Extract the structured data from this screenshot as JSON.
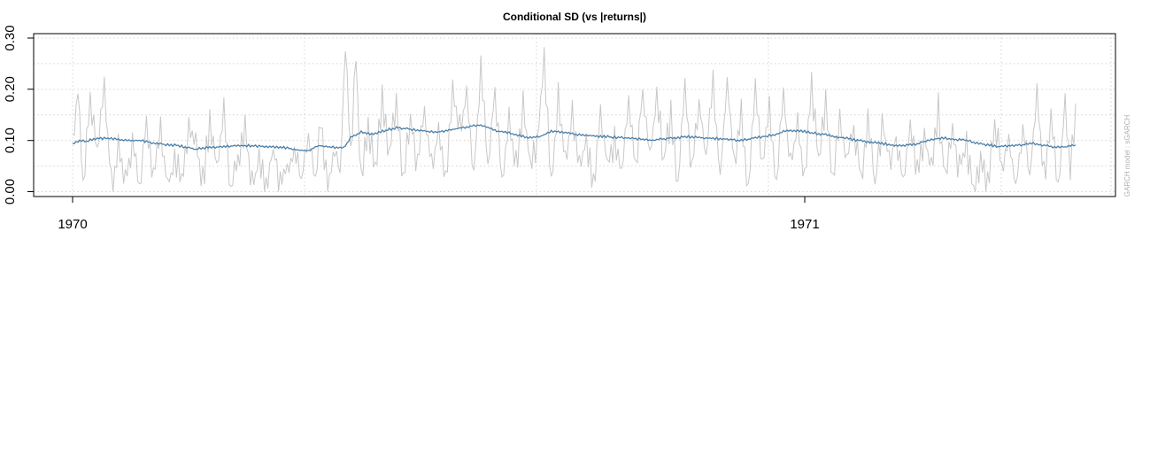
{
  "chart_data": {
    "type": "line",
    "title": "Conditional SD (vs |returns|)",
    "side_label": "GARCH model : sGARCH",
    "xlabel": "",
    "ylabel": "",
    "x_ticks": [
      "1970",
      "1971"
    ],
    "y_ticks": [
      "0.00",
      "0.10",
      "0.20",
      "0.30"
    ],
    "ylim": [
      -0.0085,
      0.31
    ],
    "grid": true,
    "n_points": 571,
    "colors": {
      "abs_returns": "#c8c8c8",
      "cond_sd": "#4a7faa",
      "grid": "#d4d4d4"
    },
    "series": [
      {
        "key": "abs_returns",
        "knots": [
          [
            0,
            0.095
          ],
          [
            3,
            0.2
          ],
          [
            6,
            0.02
          ],
          [
            10,
            0.185
          ],
          [
            14,
            0.07
          ],
          [
            18,
            0.205
          ],
          [
            22,
            0.01
          ],
          [
            26,
            0.08
          ],
          [
            30,
            0.02
          ],
          [
            34,
            0.1
          ],
          [
            38,
            0.01
          ],
          [
            42,
            0.145
          ],
          [
            46,
            0.03
          ],
          [
            50,
            0.12
          ],
          [
            54,
            0.01
          ],
          [
            58,
            0.06
          ],
          [
            62,
            0.02
          ],
          [
            66,
            0.13
          ],
          [
            70,
            0.09
          ],
          [
            74,
            0.02
          ],
          [
            78,
            0.135
          ],
          [
            82,
            0.045
          ],
          [
            86,
            0.16
          ],
          [
            90,
            0.01
          ],
          [
            94,
            0.07
          ],
          [
            98,
            0.13
          ],
          [
            102,
            0.01
          ],
          [
            106,
            0.06
          ],
          [
            110,
            0.02
          ],
          [
            114,
            0.08
          ],
          [
            118,
            0.01
          ],
          [
            122,
            0.045
          ],
          [
            126,
            0.08
          ],
          [
            130,
            0.02
          ],
          [
            134,
            0.1
          ],
          [
            138,
            0.03
          ],
          [
            141,
            0.15
          ],
          [
            145,
            0.0
          ],
          [
            149,
            0.1
          ],
          [
            152,
            0.03
          ],
          [
            155,
            0.295
          ],
          [
            158,
            0.07
          ],
          [
            161,
            0.27
          ],
          [
            164,
            0.02
          ],
          [
            168,
            0.13
          ],
          [
            172,
            0.04
          ],
          [
            176,
            0.19
          ],
          [
            180,
            0.07
          ],
          [
            184,
            0.17
          ],
          [
            188,
            0.02
          ],
          [
            192,
            0.15
          ],
          [
            196,
            0.05
          ],
          [
            200,
            0.16
          ],
          [
            204,
            0.04
          ],
          [
            208,
            0.13
          ],
          [
            212,
            0.03
          ],
          [
            216,
            0.19
          ],
          [
            220,
            0.12
          ],
          [
            224,
            0.19
          ],
          [
            228,
            0.03
          ],
          [
            232,
            0.25
          ],
          [
            236,
            0.04
          ],
          [
            240,
            0.2
          ],
          [
            244,
            0.01
          ],
          [
            248,
            0.14
          ],
          [
            252,
            0.05
          ],
          [
            256,
            0.17
          ],
          [
            260,
            0.06
          ],
          [
            264,
            0.1
          ],
          [
            268,
            0.25
          ],
          [
            272,
            0.02
          ],
          [
            276,
            0.18
          ],
          [
            280,
            0.06
          ],
          [
            284,
            0.15
          ],
          [
            288,
            0.05
          ],
          [
            292,
            0.1
          ],
          [
            296,
            0.02
          ],
          [
            300,
            0.14
          ],
          [
            304,
            0.06
          ],
          [
            308,
            0.1
          ],
          [
            312,
            0.03
          ],
          [
            316,
            0.18
          ],
          [
            320,
            0.04
          ],
          [
            324,
            0.2
          ],
          [
            328,
            0.06
          ],
          [
            332,
            0.19
          ],
          [
            336,
            0.06
          ],
          [
            340,
            0.15
          ],
          [
            344,
            0.02
          ],
          [
            348,
            0.2
          ],
          [
            352,
            0.04
          ],
          [
            356,
            0.18
          ],
          [
            360,
            0.07
          ],
          [
            364,
            0.22
          ],
          [
            368,
            0.03
          ],
          [
            372,
            0.22
          ],
          [
            376,
            0.06
          ],
          [
            380,
            0.15
          ],
          [
            384,
            0.0
          ],
          [
            388,
            0.2
          ],
          [
            392,
            0.06
          ],
          [
            396,
            0.16
          ],
          [
            400,
            0.02
          ],
          [
            404,
            0.19
          ],
          [
            408,
            0.05
          ],
          [
            412,
            0.14
          ],
          [
            416,
            0.03
          ],
          [
            420,
            0.2
          ],
          [
            424,
            0.06
          ],
          [
            428,
            0.17
          ],
          [
            432,
            0.03
          ],
          [
            436,
            0.15
          ],
          [
            440,
            0.06
          ],
          [
            444,
            0.13
          ],
          [
            448,
            0.03
          ],
          [
            452,
            0.14
          ],
          [
            456,
            0.01
          ],
          [
            460,
            0.13
          ],
          [
            464,
            0.07
          ],
          [
            468,
            0.1
          ],
          [
            472,
            0.02
          ],
          [
            476,
            0.14
          ],
          [
            480,
            0.03
          ],
          [
            484,
            0.1
          ],
          [
            488,
            0.05
          ],
          [
            492,
            0.16
          ],
          [
            496,
            0.02
          ],
          [
            500,
            0.12
          ],
          [
            504,
            0.04
          ],
          [
            508,
            0.09
          ],
          [
            512,
            0.0
          ],
          [
            516,
            0.06
          ],
          [
            520,
            0.01
          ],
          [
            524,
            0.14
          ],
          [
            528,
            0.04
          ],
          [
            532,
            0.1
          ],
          [
            536,
            0.01
          ],
          [
            540,
            0.12
          ],
          [
            544,
            0.03
          ],
          [
            548,
            0.2
          ],
          [
            552,
            0.03
          ],
          [
            556,
            0.14
          ],
          [
            560,
            0.01
          ],
          [
            564,
            0.17
          ],
          [
            567,
            0.05
          ],
          [
            570,
            0.16
          ]
        ]
      },
      {
        "key": "cond_sd",
        "knots": [
          [
            0,
            0.093
          ],
          [
            4,
            0.099
          ],
          [
            8,
            0.098
          ],
          [
            12,
            0.103
          ],
          [
            20,
            0.104
          ],
          [
            30,
            0.101
          ],
          [
            40,
            0.099
          ],
          [
            50,
            0.093
          ],
          [
            60,
            0.09
          ],
          [
            70,
            0.083
          ],
          [
            80,
            0.087
          ],
          [
            90,
            0.089
          ],
          [
            100,
            0.09
          ],
          [
            110,
            0.088
          ],
          [
            120,
            0.086
          ],
          [
            128,
            0.081
          ],
          [
            134,
            0.08
          ],
          [
            140,
            0.09
          ],
          [
            148,
            0.087
          ],
          [
            154,
            0.085
          ],
          [
            158,
            0.105
          ],
          [
            164,
            0.117
          ],
          [
            170,
            0.112
          ],
          [
            178,
            0.12
          ],
          [
            184,
            0.125
          ],
          [
            192,
            0.122
          ],
          [
            200,
            0.118
          ],
          [
            208,
            0.117
          ],
          [
            214,
            0.12
          ],
          [
            220,
            0.124
          ],
          [
            226,
            0.128
          ],
          [
            230,
            0.13
          ],
          [
            236,
            0.125
          ],
          [
            242,
            0.118
          ],
          [
            248,
            0.115
          ],
          [
            254,
            0.11
          ],
          [
            260,
            0.105
          ],
          [
            266,
            0.108
          ],
          [
            272,
            0.118
          ],
          [
            280,
            0.115
          ],
          [
            290,
            0.11
          ],
          [
            300,
            0.108
          ],
          [
            310,
            0.106
          ],
          [
            320,
            0.104
          ],
          [
            330,
            0.1
          ],
          [
            340,
            0.105
          ],
          [
            350,
            0.107
          ],
          [
            360,
            0.105
          ],
          [
            370,
            0.103
          ],
          [
            380,
            0.1
          ],
          [
            390,
            0.106
          ],
          [
            400,
            0.112
          ],
          [
            406,
            0.12
          ],
          [
            414,
            0.119
          ],
          [
            420,
            0.115
          ],
          [
            430,
            0.11
          ],
          [
            440,
            0.104
          ],
          [
            450,
            0.098
          ],
          [
            460,
            0.094
          ],
          [
            470,
            0.09
          ],
          [
            478,
            0.092
          ],
          [
            486,
            0.1
          ],
          [
            494,
            0.105
          ],
          [
            500,
            0.103
          ],
          [
            508,
            0.1
          ],
          [
            516,
            0.093
          ],
          [
            526,
            0.088
          ],
          [
            536,
            0.09
          ],
          [
            546,
            0.094
          ],
          [
            556,
            0.088
          ],
          [
            564,
            0.087
          ],
          [
            570,
            0.091
          ]
        ]
      }
    ]
  }
}
